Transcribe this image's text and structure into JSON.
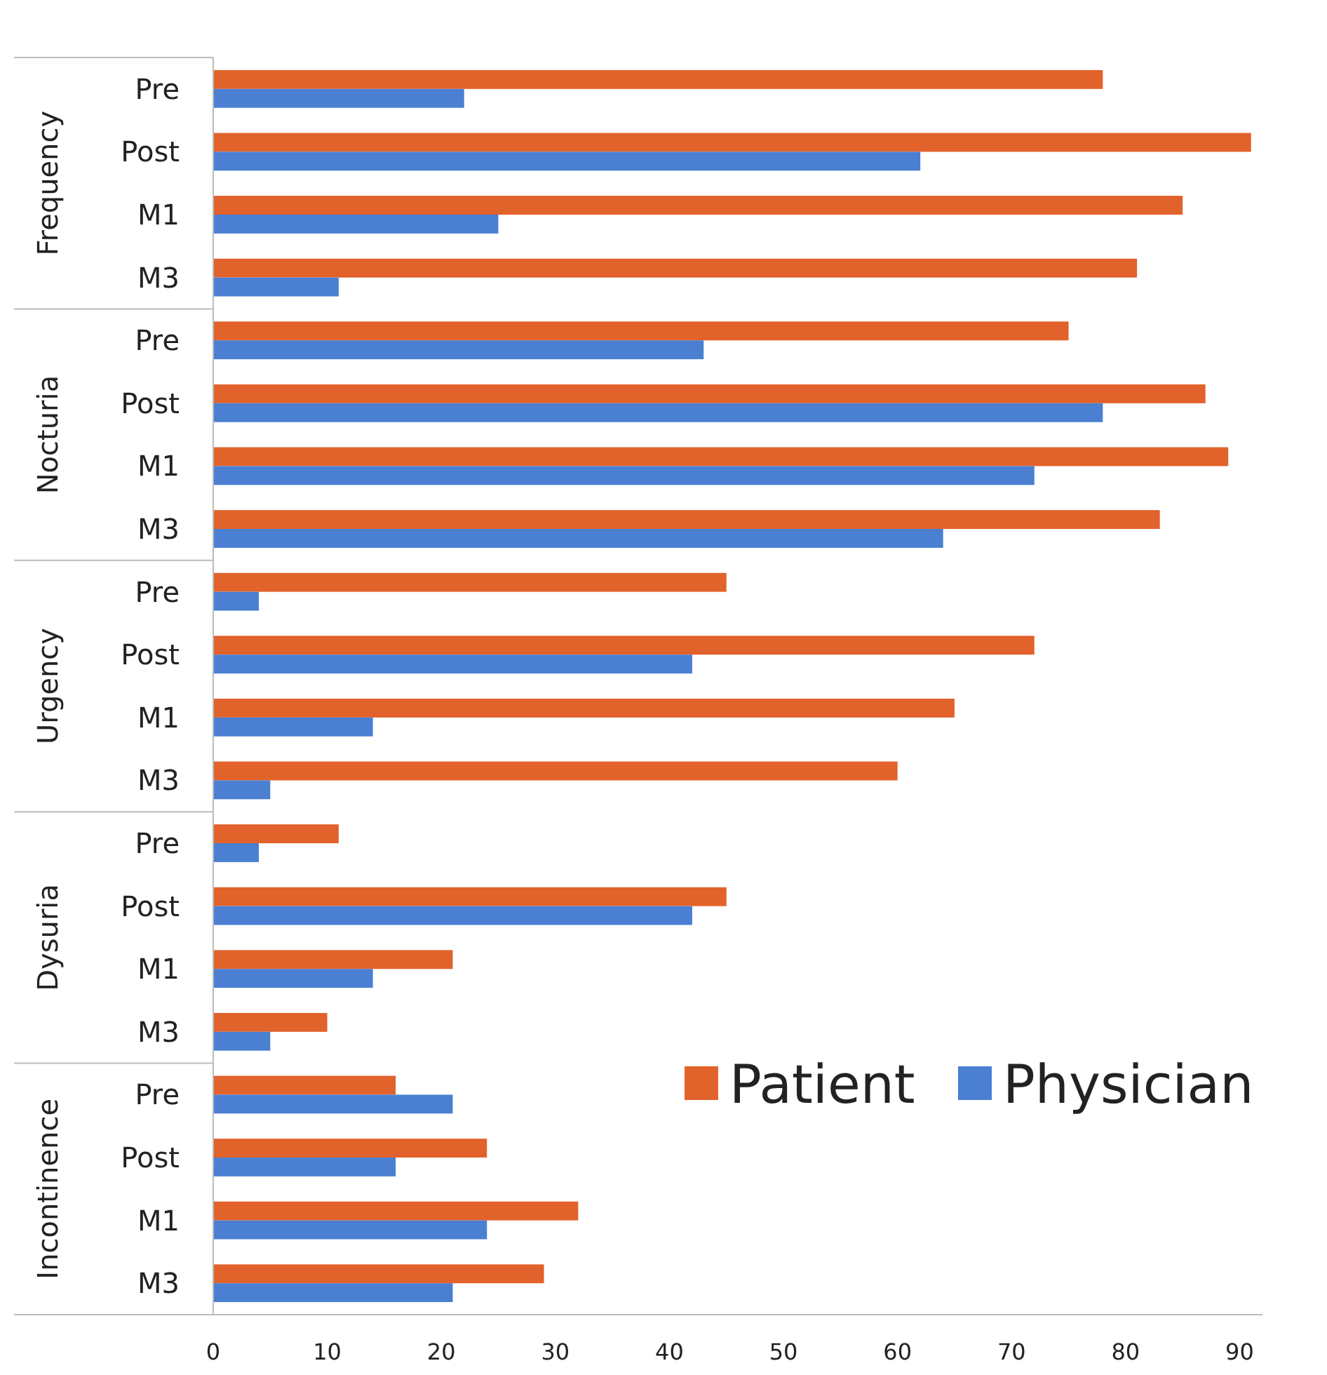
{
  "chart_data": {
    "type": "bar",
    "orientation": "horizontal",
    "categories": [
      "Pre",
      "Post",
      "M1",
      "M3",
      "Pre",
      "Post",
      "M1",
      "M3",
      "Pre",
      "Post",
      "M1",
      "M3",
      "Pre",
      "Post",
      "M1",
      "M3",
      "Pre",
      "Post",
      "M1",
      "M3"
    ],
    "annotations": [
      "Frequency",
      "Nocturia",
      "Urgency",
      "Dysuria",
      "Incontinence"
    ],
    "series": [
      {
        "name": "Patient",
        "color": "#e2622b",
        "values": [
          78,
          91,
          85,
          81,
          75,
          87,
          89,
          83,
          45,
          72,
          65,
          60,
          11,
          45,
          21,
          10,
          16,
          24,
          32,
          29
        ]
      },
      {
        "name": "Physician",
        "color": "#4a7fd2",
        "values": [
          22,
          62,
          25,
          11,
          43,
          78,
          72,
          64,
          4,
          42,
          14,
          5,
          4,
          42,
          14,
          5,
          21,
          16,
          24,
          21
        ]
      }
    ],
    "xlim": [
      0,
      92
    ],
    "xticks": [
      0,
      10,
      20,
      30,
      40,
      50,
      60,
      70,
      80,
      90
    ],
    "grid": false,
    "legend": "bottom right"
  }
}
